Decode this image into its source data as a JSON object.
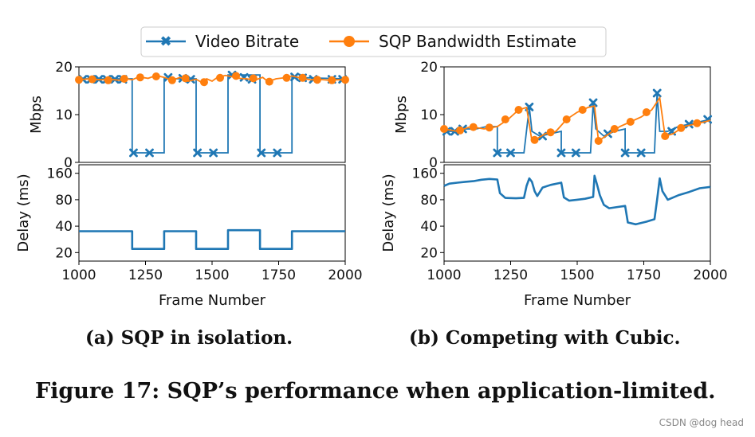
{
  "legend": {
    "video_bitrate": "Video Bitrate",
    "sqp_estimate": "SQP Bandwidth Estimate"
  },
  "colors": {
    "bitrate": "#1f77b4",
    "estimate": "#ff7f0e",
    "delay": "#1f77b4"
  },
  "captions": {
    "a": "(a) SQP in isolation.",
    "b": "(b) Competing with Cubic.",
    "figure": "Figure 17: SQP’s performance when application-limited."
  },
  "watermark": "CSDN @dog head",
  "chart_data": [
    {
      "id": "a",
      "type": "line",
      "xlabel": "Frame Number",
      "xlim": [
        1000,
        2000
      ],
      "xticks": [
        1000,
        1250,
        1500,
        1750,
        2000
      ],
      "top": {
        "ylabel": "Mbps",
        "ylim": [
          0,
          20
        ],
        "yticks": [
          0,
          10,
          20
        ],
        "series": [
          {
            "name": "Video Bitrate",
            "x": [
              1000,
              1200,
              1200,
              1320,
              1320,
              1440,
              1440,
              1560,
              1560,
              1680,
              1680,
              1800,
              1800,
              2000
            ],
            "y": [
              17.5,
              17.5,
              2,
              2,
              17.5,
              17.5,
              2,
              2,
              18.3,
              18.3,
              2,
              2,
              17.8,
              17.5
            ],
            "markers_x": [
              1015,
              1045,
              1075,
              1105,
              1135,
              1165,
              1205,
              1265,
              1335,
              1390,
              1420,
              1445,
              1505,
              1575,
              1620,
              1650,
              1685,
              1745,
              1810,
              1840,
              1880,
              1950,
              1990
            ],
            "markers_y": [
              17.4,
              17.4,
              17.4,
              17.4,
              17.4,
              17.4,
              2,
              2,
              17.8,
              17.6,
              17.4,
              2,
              2,
              18.3,
              17.8,
              17.4,
              2,
              2,
              17.9,
              17.7,
              17.4,
              17.4,
              17.4
            ]
          },
          {
            "name": "SQP Bandwidth Estimate",
            "x": [
              1000,
              1040,
              1080,
              1120,
              1150,
              1180,
              1200,
              1225,
              1260,
              1290,
              1320,
              1350,
              1380,
              1410,
              1440,
              1460,
              1480,
              1500,
              1520,
              1550,
              1570,
              1600,
              1630,
              1660,
              1690,
              1710,
              1740,
              1770,
              1800,
              1830,
              1870,
              1900,
              1940,
              1970,
              2000
            ],
            "y": [
              17.3,
              17.5,
              17.3,
              17.4,
              17.2,
              17.5,
              17.3,
              17.9,
              17.6,
              18.2,
              17.8,
              17.2,
              17.8,
              17.0,
              17.4,
              16.8,
              17.5,
              17.0,
              17.8,
              18.2,
              18.0,
              17.6,
              17.5,
              17.2,
              17.8,
              16.9,
              17.5,
              17.7,
              18.1,
              17.7,
              17.3,
              17.4,
              17.2,
              17.3,
              17.3
            ],
            "markers_x": [
              1000,
              1050,
              1110,
              1170,
              1230,
              1290,
              1350,
              1400,
              1470,
              1530,
              1590,
              1655,
              1715,
              1780,
              1840,
              1895,
              1950,
              2000
            ],
            "markers_y": [
              17.3,
              17.4,
              17.2,
              17.5,
              17.8,
              18.0,
              17.2,
              17.6,
              16.8,
              17.7,
              18.1,
              17.6,
              16.9,
              17.7,
              17.7,
              17.3,
              17.2,
              17.3
            ]
          }
        ]
      },
      "bottom": {
        "ylabel": "Delay (ms)",
        "yscale": "log",
        "ylim": [
          16,
          200
        ],
        "yticks": [
          20,
          40,
          80,
          160
        ],
        "series": [
          {
            "name": "Delay",
            "x": [
              1000,
              1200,
              1200,
              1320,
              1320,
              1440,
              1440,
              1560,
              1560,
              1680,
              1680,
              1800,
              1800,
              2000
            ],
            "y": [
              35,
              35,
              22,
              22,
              35,
              35,
              22,
              22,
              36,
              36,
              22,
              22,
              35,
              35
            ]
          }
        ]
      }
    },
    {
      "id": "b",
      "type": "line",
      "xlabel": "Frame Number",
      "xlim": [
        1000,
        2000
      ],
      "xticks": [
        1000,
        1250,
        1500,
        1750,
        2000
      ],
      "top": {
        "ylabel": "Mbps",
        "ylim": [
          0,
          20
        ],
        "yticks": [
          0,
          10,
          20
        ],
        "series": [
          {
            "name": "Video Bitrate",
            "x": [
              1000,
              1040,
              1080,
              1120,
              1160,
              1200,
              1200,
              1300,
              1320,
              1330,
              1360,
              1400,
              1440,
              1440,
              1550,
              1560,
              1570,
              1600,
              1640,
              1680,
              1680,
              1790,
              1800,
              1810,
              1840,
              1880,
              1920,
              1960,
              2000
            ],
            "y": [
              6.5,
              6.5,
              7,
              7,
              7.5,
              7.5,
              2,
              2,
              11.6,
              6.5,
              5.5,
              6,
              6.5,
              2,
              2,
              12.5,
              7,
              5.5,
              6.5,
              7,
              2,
              2,
              14.5,
              6.5,
              6.5,
              7.5,
              8,
              8.5,
              9
            ],
            "markers_x": [
              1010,
              1040,
              1070,
              1200,
              1250,
              1320,
              1370,
              1440,
              1495,
              1560,
              1615,
              1680,
              1740,
              1800,
              1855,
              1920,
              1990
            ],
            "markers_y": [
              6.5,
              6.5,
              7.0,
              2,
              2,
              11.6,
              5.5,
              2,
              2,
              12.5,
              6.0,
              2,
              2,
              14.5,
              6.5,
              8.0,
              9.0
            ]
          },
          {
            "name": "SQP Bandwidth Estimate",
            "x": [
              1000,
              1050,
              1100,
              1150,
              1200,
              1240,
              1280,
              1310,
              1330,
              1350,
              1380,
              1420,
              1460,
              1500,
              1540,
              1565,
              1580,
              1620,
              1660,
              1700,
              1740,
              1780,
              1810,
              1830,
              1860,
              1900,
              1940,
              1980,
              2000
            ],
            "y": [
              7,
              6.5,
              7.5,
              7,
              7.5,
              9,
              11,
              11.5,
              4.5,
              5,
              6,
              6.5,
              9,
              10.5,
              11.5,
              11.8,
              4.5,
              6,
              7.5,
              8.5,
              9.5,
              11,
              13.5,
              5.5,
              6,
              7.5,
              8,
              8.5,
              8.8
            ],
            "markers_x": [
              1000,
              1060,
              1110,
              1170,
              1230,
              1280,
              1340,
              1400,
              1460,
              1520,
              1580,
              1640,
              1700,
              1760,
              1830,
              1890,
              1950
            ],
            "markers_y": [
              7.0,
              6.7,
              7.4,
              7.3,
              9.0,
              11.0,
              4.7,
              6.3,
              9.0,
              11.0,
              4.5,
              7.0,
              8.5,
              10.5,
              5.5,
              7.2,
              8.2
            ]
          }
        ]
      },
      "bottom": {
        "ylabel": "Delay (ms)",
        "yscale": "log",
        "ylim": [
          16,
          200
        ],
        "yticks": [
          20,
          40,
          80,
          160
        ],
        "series": [
          {
            "name": "Delay",
            "x": [
              1000,
              1020,
              1050,
              1080,
              1110,
              1140,
              1170,
              1200,
              1210,
              1230,
              1270,
              1300,
              1310,
              1320,
              1330,
              1340,
              1350,
              1370,
              1400,
              1440,
              1450,
              1470,
              1500,
              1530,
              1560,
              1565,
              1575,
              1585,
              1600,
              1620,
              1650,
              1680,
              1690,
              1720,
              1760,
              1790,
              1800,
              1810,
              1820,
              1840,
              1880,
              1920,
              1960,
              2000
            ],
            "y": [
              115,
              122,
              125,
              128,
              130,
              135,
              138,
              136,
              95,
              84,
              83,
              84,
              115,
              140,
              128,
              100,
              88,
              110,
              118,
              125,
              85,
              78,
              80,
              82,
              86,
              150,
              118,
              90,
              70,
              64,
              66,
              68,
              44,
              42,
              45,
              48,
              80,
              140,
              100,
              80,
              90,
              98,
              108,
              112
            ]
          }
        ]
      }
    }
  ]
}
